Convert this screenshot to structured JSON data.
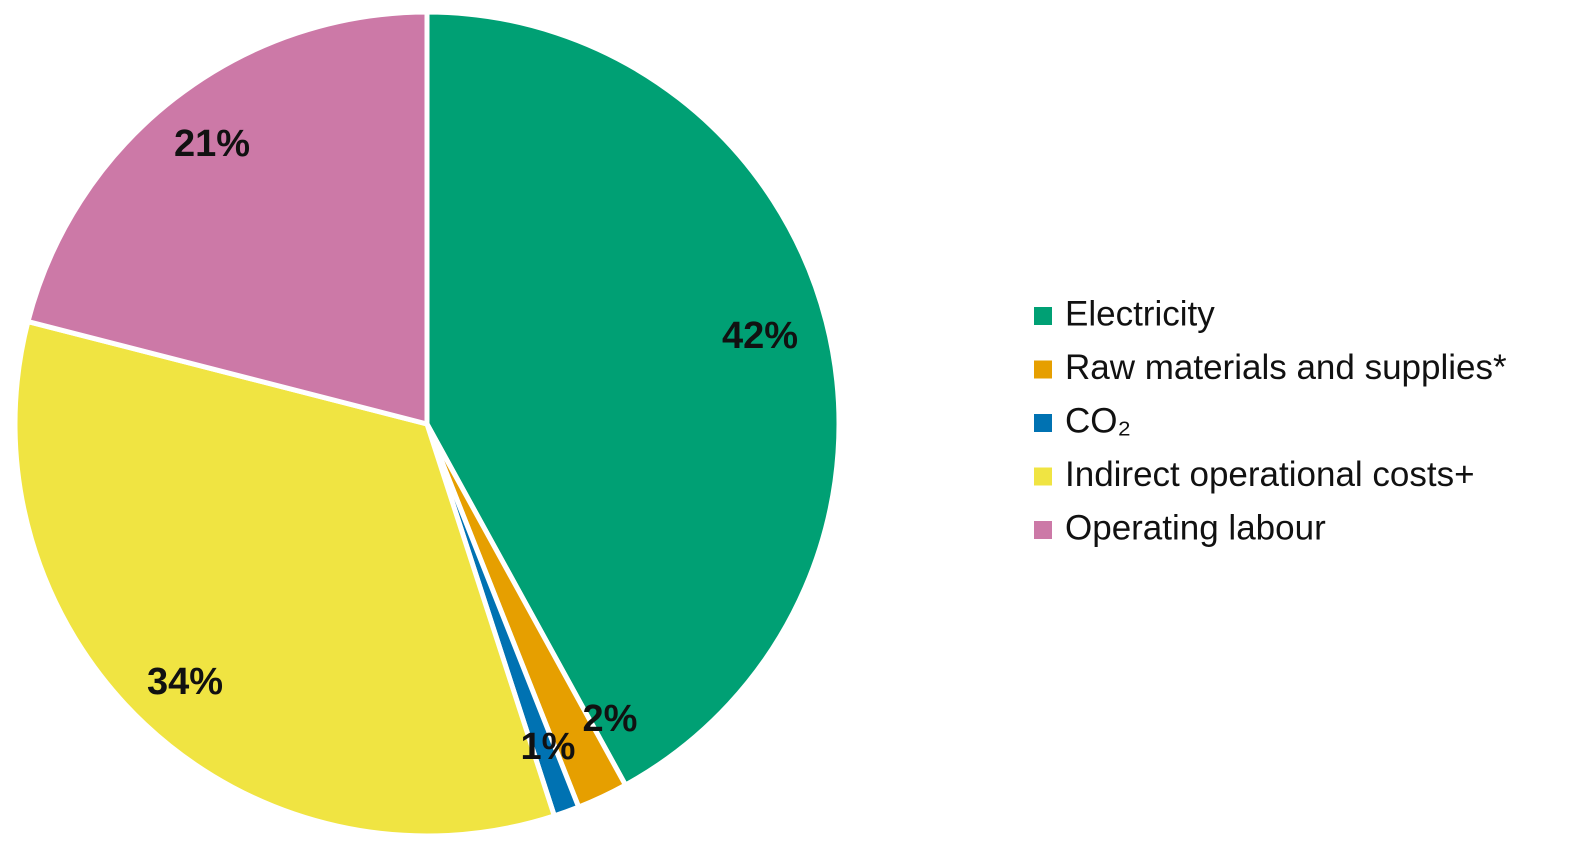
{
  "chart_data": {
    "type": "pie",
    "title": "",
    "series": [
      {
        "name": "Electricity",
        "value": 42,
        "label": "42%",
        "color": "#00a074"
      },
      {
        "name": "Raw materials and supplies*",
        "value": 2,
        "label": "2%",
        "color": "#e69f00"
      },
      {
        "name": "CO₂",
        "value": 1,
        "label": "1%",
        "color": "#0072b2"
      },
      {
        "name": "Indirect operational costs+",
        "value": 34,
        "label": "34%",
        "color": "#f0e442"
      },
      {
        "name": "Operating labour",
        "value": 21,
        "label": "21%",
        "color": "#cc79a7"
      }
    ],
    "start_angle_deg": 0,
    "direction": "clockwise",
    "legend_position": "right"
  }
}
